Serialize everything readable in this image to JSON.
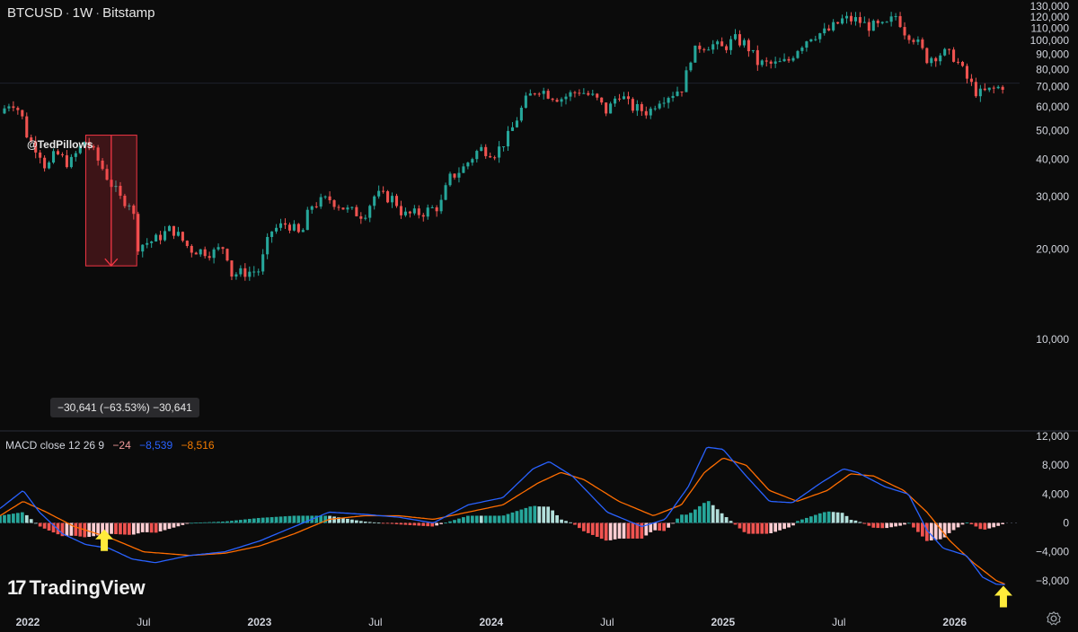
{
  "header": {
    "symbol": "BTCUSD",
    "interval": "1W",
    "exchange": "Bitstamp",
    "separator": "·"
  },
  "author": "@TedPillows",
  "measure": {
    "text": "−30,641 (−63.53%) −30,641",
    "from_price": 48200,
    "to_price": 17600,
    "from_x": 2022.25,
    "to_x": 2022.47
  },
  "macd_legend": {
    "label": "MACD close 12 26 9",
    "hist": "−24",
    "macd": "−8,539",
    "signal": "−8,516"
  },
  "brand": {
    "name": "TradingView",
    "mark": "17"
  },
  "colors": {
    "up": "#26a69a",
    "down": "#ef5350",
    "hist_up_strong": "#26a69a",
    "hist_up_weak": "#b2dfdb",
    "hist_down_strong": "#ef5350",
    "hist_down_weak": "#ffcdd2",
    "macd": "#2962ff",
    "signal": "#ff6d00",
    "arrow": "#ffeb3b",
    "measure": "#f23645"
  },
  "chart_data": [
    {
      "type": "candlestick",
      "title": "BTCUSD · 1W · Bitstamp",
      "x_range": [
        2021.88,
        2026.28
      ],
      "ylim": [
        5000,
        132000
      ],
      "y_ticks": [
        10000,
        20000,
        30000,
        40000,
        50000,
        60000,
        70000,
        80000,
        90000,
        100000,
        110000,
        120000,
        130000
      ],
      "y_tick_labels": [
        "10,000",
        "20,000",
        "30,000",
        "40,000",
        "50,000",
        "60,000",
        "70,000",
        "80,000",
        "90,000",
        "100,000",
        "110,000",
        "120,000",
        "130,000"
      ],
      "x_ticks": [
        2022.0,
        2022.5,
        2023.0,
        2023.5,
        2024.0,
        2024.5,
        2025.0,
        2025.5,
        2026.0
      ],
      "x_tick_labels": [
        "2022",
        "Jul",
        "2023",
        "Jul",
        "2024",
        "Jul",
        "2025",
        "Jul",
        "2026"
      ],
      "close_path": [
        [
          2021.88,
          57000
        ],
        [
          2021.93,
          63000
        ],
        [
          2021.97,
          57000
        ],
        [
          2022.0,
          47000
        ],
        [
          2022.05,
          42500
        ],
        [
          2022.08,
          37000
        ],
        [
          2022.12,
          42000
        ],
        [
          2022.18,
          38500
        ],
        [
          2022.25,
          46500
        ],
        [
          2022.3,
          40000
        ],
        [
          2022.35,
          34000
        ],
        [
          2022.4,
          29500
        ],
        [
          2022.45,
          28500
        ],
        [
          2022.47,
          20500
        ],
        [
          2022.55,
          21500
        ],
        [
          2022.62,
          23500
        ],
        [
          2022.7,
          20000
        ],
        [
          2022.8,
          19500
        ],
        [
          2022.85,
          20500
        ],
        [
          2022.88,
          16500
        ],
        [
          2022.95,
          16800
        ],
        [
          2023.0,
          17000
        ],
        [
          2023.05,
          23000
        ],
        [
          2023.12,
          24500
        ],
        [
          2023.18,
          22000
        ],
        [
          2023.22,
          28000
        ],
        [
          2023.3,
          29500
        ],
        [
          2023.38,
          27000
        ],
        [
          2023.45,
          26000
        ],
        [
          2023.5,
          30500
        ],
        [
          2023.58,
          29500
        ],
        [
          2023.62,
          26000
        ],
        [
          2023.7,
          26500
        ],
        [
          2023.78,
          28000
        ],
        [
          2023.82,
          34500
        ],
        [
          2023.88,
          37500
        ],
        [
          2023.95,
          43500
        ],
        [
          2024.02,
          42000
        ],
        [
          2024.08,
          48500
        ],
        [
          2024.15,
          63000
        ],
        [
          2024.2,
          69500
        ],
        [
          2024.25,
          66000
        ],
        [
          2024.3,
          64000
        ],
        [
          2024.38,
          68000
        ],
        [
          2024.45,
          64000
        ],
        [
          2024.5,
          57500
        ],
        [
          2024.55,
          67000
        ],
        [
          2024.6,
          60000
        ],
        [
          2024.68,
          57500
        ],
        [
          2024.72,
          63500
        ],
        [
          2024.78,
          66500
        ],
        [
          2024.83,
          70000
        ],
        [
          2024.86,
          88000
        ],
        [
          2024.9,
          96000
        ],
        [
          2024.95,
          97000
        ],
        [
          2025.0,
          94000
        ],
        [
          2025.05,
          101000
        ],
        [
          2025.1,
          97000
        ],
        [
          2025.15,
          84000
        ],
        [
          2025.22,
          83000
        ],
        [
          2025.28,
          85000
        ],
        [
          2025.32,
          94000
        ],
        [
          2025.38,
          104000
        ],
        [
          2025.45,
          107000
        ],
        [
          2025.52,
          118000
        ],
        [
          2025.58,
          117000
        ],
        [
          2025.62,
          112000
        ],
        [
          2025.7,
          111000
        ],
        [
          2025.75,
          122000
        ],
        [
          2025.78,
          108000
        ],
        [
          2025.82,
          103000
        ],
        [
          2025.88,
          87000
        ],
        [
          2025.95,
          91000
        ],
        [
          2026.0,
          88000
        ],
        [
          2026.05,
          75000
        ],
        [
          2026.1,
          66000
        ],
        [
          2026.15,
          68000
        ],
        [
          2026.2,
          70000
        ],
        [
          2026.22,
          72000
        ]
      ]
    },
    {
      "type": "macd",
      "title": "MACD close 12 26 9",
      "ylim": [
        -11500,
        12500
      ],
      "y_ticks": [
        12000,
        8000,
        4000,
        0,
        -4000,
        -8000
      ],
      "y_tick_labels": [
        "12,000",
        "8,000",
        "4,000",
        "0",
        "−4,000",
        "−8,000"
      ],
      "series": [
        {
          "name": "MACD",
          "points": [
            [
              2021.88,
              2000
            ],
            [
              2021.98,
              4500
            ],
            [
              2022.05,
              1500
            ],
            [
              2022.15,
              -1500
            ],
            [
              2022.25,
              -3000
            ],
            [
              2022.35,
              -3500
            ],
            [
              2022.45,
              -5000
            ],
            [
              2022.55,
              -5500
            ],
            [
              2022.7,
              -4500
            ],
            [
              2022.85,
              -4000
            ],
            [
              2023.0,
              -2500
            ],
            [
              2023.15,
              -500
            ],
            [
              2023.3,
              1500
            ],
            [
              2023.45,
              1200
            ],
            [
              2023.6,
              800
            ],
            [
              2023.75,
              0
            ],
            [
              2023.9,
              2500
            ],
            [
              2024.05,
              3500
            ],
            [
              2024.18,
              7500
            ],
            [
              2024.25,
              8500
            ],
            [
              2024.35,
              6500
            ],
            [
              2024.5,
              1500
            ],
            [
              2024.65,
              -500
            ],
            [
              2024.75,
              500
            ],
            [
              2024.85,
              5000
            ],
            [
              2024.93,
              10500
            ],
            [
              2025.0,
              10200
            ],
            [
              2025.1,
              6500
            ],
            [
              2025.2,
              3000
            ],
            [
              2025.3,
              2800
            ],
            [
              2025.42,
              5500
            ],
            [
              2025.52,
              7500
            ],
            [
              2025.58,
              7000
            ],
            [
              2025.7,
              5000
            ],
            [
              2025.8,
              4000
            ],
            [
              2025.88,
              -1000
            ],
            [
              2025.95,
              -3500
            ],
            [
              2026.05,
              -4500
            ],
            [
              2026.12,
              -7500
            ],
            [
              2026.18,
              -8500
            ],
            [
              2026.22,
              -8539
            ]
          ]
        },
        {
          "name": "Signal",
          "points": [
            [
              2021.88,
              1000
            ],
            [
              2021.98,
              3000
            ],
            [
              2022.08,
              1500
            ],
            [
              2022.2,
              -500
            ],
            [
              2022.35,
              -2000
            ],
            [
              2022.5,
              -4000
            ],
            [
              2022.7,
              -4500
            ],
            [
              2022.85,
              -4200
            ],
            [
              2023.0,
              -3200
            ],
            [
              2023.15,
              -1500
            ],
            [
              2023.3,
              500
            ],
            [
              2023.45,
              1000
            ],
            [
              2023.6,
              1000
            ],
            [
              2023.75,
              500
            ],
            [
              2023.9,
              1500
            ],
            [
              2024.05,
              2500
            ],
            [
              2024.2,
              5500
            ],
            [
              2024.3,
              7000
            ],
            [
              2024.4,
              6000
            ],
            [
              2024.55,
              3000
            ],
            [
              2024.7,
              1000
            ],
            [
              2024.82,
              2500
            ],
            [
              2024.92,
              7000
            ],
            [
              2025.0,
              9000
            ],
            [
              2025.1,
              8000
            ],
            [
              2025.2,
              4500
            ],
            [
              2025.32,
              3000
            ],
            [
              2025.45,
              4500
            ],
            [
              2025.55,
              6800
            ],
            [
              2025.65,
              6500
            ],
            [
              2025.78,
              4500
            ],
            [
              2025.88,
              1500
            ],
            [
              2025.98,
              -2500
            ],
            [
              2026.08,
              -5500
            ],
            [
              2026.18,
              -8000
            ],
            [
              2026.22,
              -8516
            ]
          ]
        }
      ],
      "histogram_note": "histogram = MACD − Signal, drawn weekly"
    }
  ]
}
